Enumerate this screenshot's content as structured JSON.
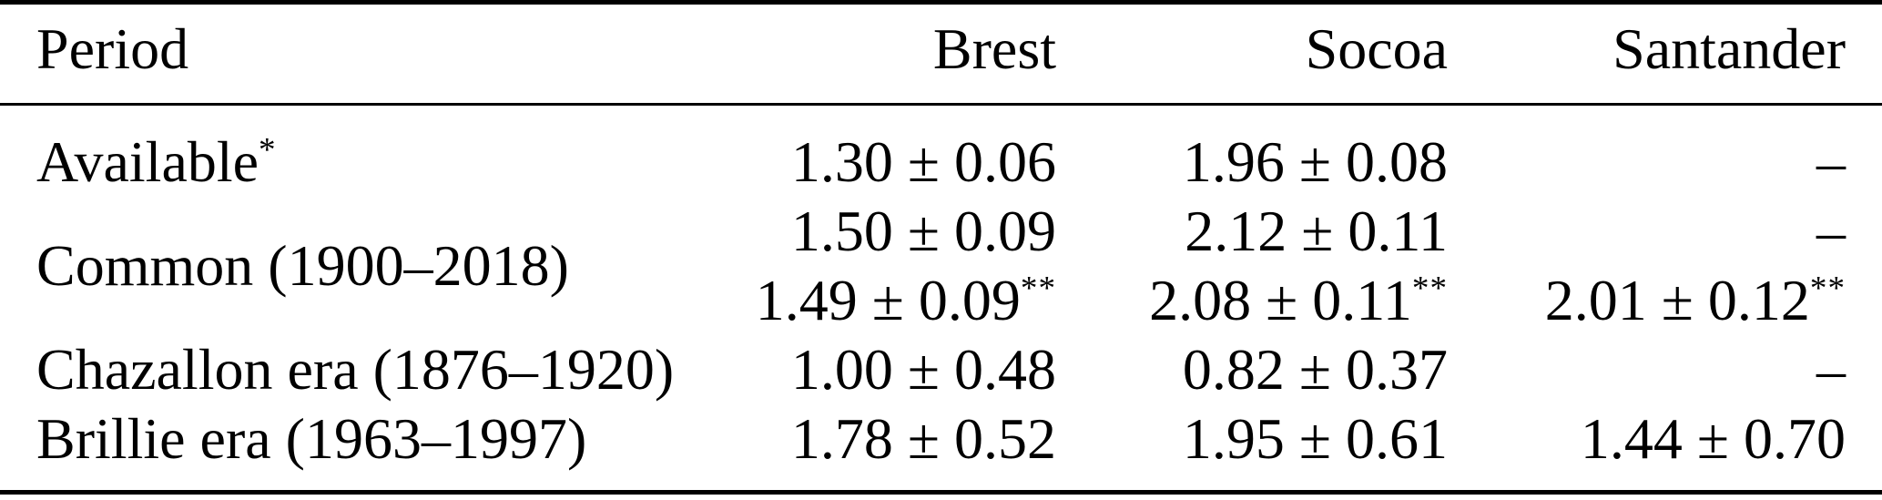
{
  "colors": {
    "text": "#000000",
    "background": "#ffffff",
    "rules": "#000000"
  },
  "table": {
    "headers": [
      {
        "label": "Period"
      },
      {
        "label": "Brest"
      },
      {
        "label": "Socoa"
      },
      {
        "label": "Santander"
      }
    ],
    "rows": [
      {
        "period": {
          "text": "Available",
          "sup": "*"
        },
        "lines": [
          {
            "brest": {
              "text": "1.30 ± 0.06",
              "sup": ""
            },
            "socoa": {
              "text": "1.96 ± 0.08",
              "sup": ""
            },
            "santander": {
              "text": "–",
              "sup": ""
            }
          }
        ]
      },
      {
        "period": {
          "text": "Common (1900–2018)",
          "sup": ""
        },
        "lines": [
          {
            "brest": {
              "text": "1.50 ± 0.09",
              "sup": ""
            },
            "socoa": {
              "text": "2.12 ± 0.11",
              "sup": ""
            },
            "santander": {
              "text": "–",
              "sup": ""
            }
          },
          {
            "brest": {
              "text": "1.49 ± 0.09",
              "sup": "**"
            },
            "socoa": {
              "text": "2.08 ± 0.11",
              "sup": "**"
            },
            "santander": {
              "text": "2.01 ± 0.12",
              "sup": "**"
            }
          }
        ]
      },
      {
        "period": {
          "text": "Chazallon era (1876–1920)",
          "sup": ""
        },
        "lines": [
          {
            "brest": {
              "text": "1.00 ± 0.48",
              "sup": ""
            },
            "socoa": {
              "text": "0.82 ± 0.37",
              "sup": ""
            },
            "santander": {
              "text": "–",
              "sup": ""
            }
          }
        ]
      },
      {
        "period": {
          "text": "Brillie era (1963–1997)",
          "sup": ""
        },
        "lines": [
          {
            "brest": {
              "text": "1.78 ± 0.52",
              "sup": ""
            },
            "socoa": {
              "text": "1.95 ± 0.61",
              "sup": ""
            },
            "santander": {
              "text": "1.44 ± 0.70",
              "sup": ""
            }
          }
        ]
      }
    ]
  }
}
